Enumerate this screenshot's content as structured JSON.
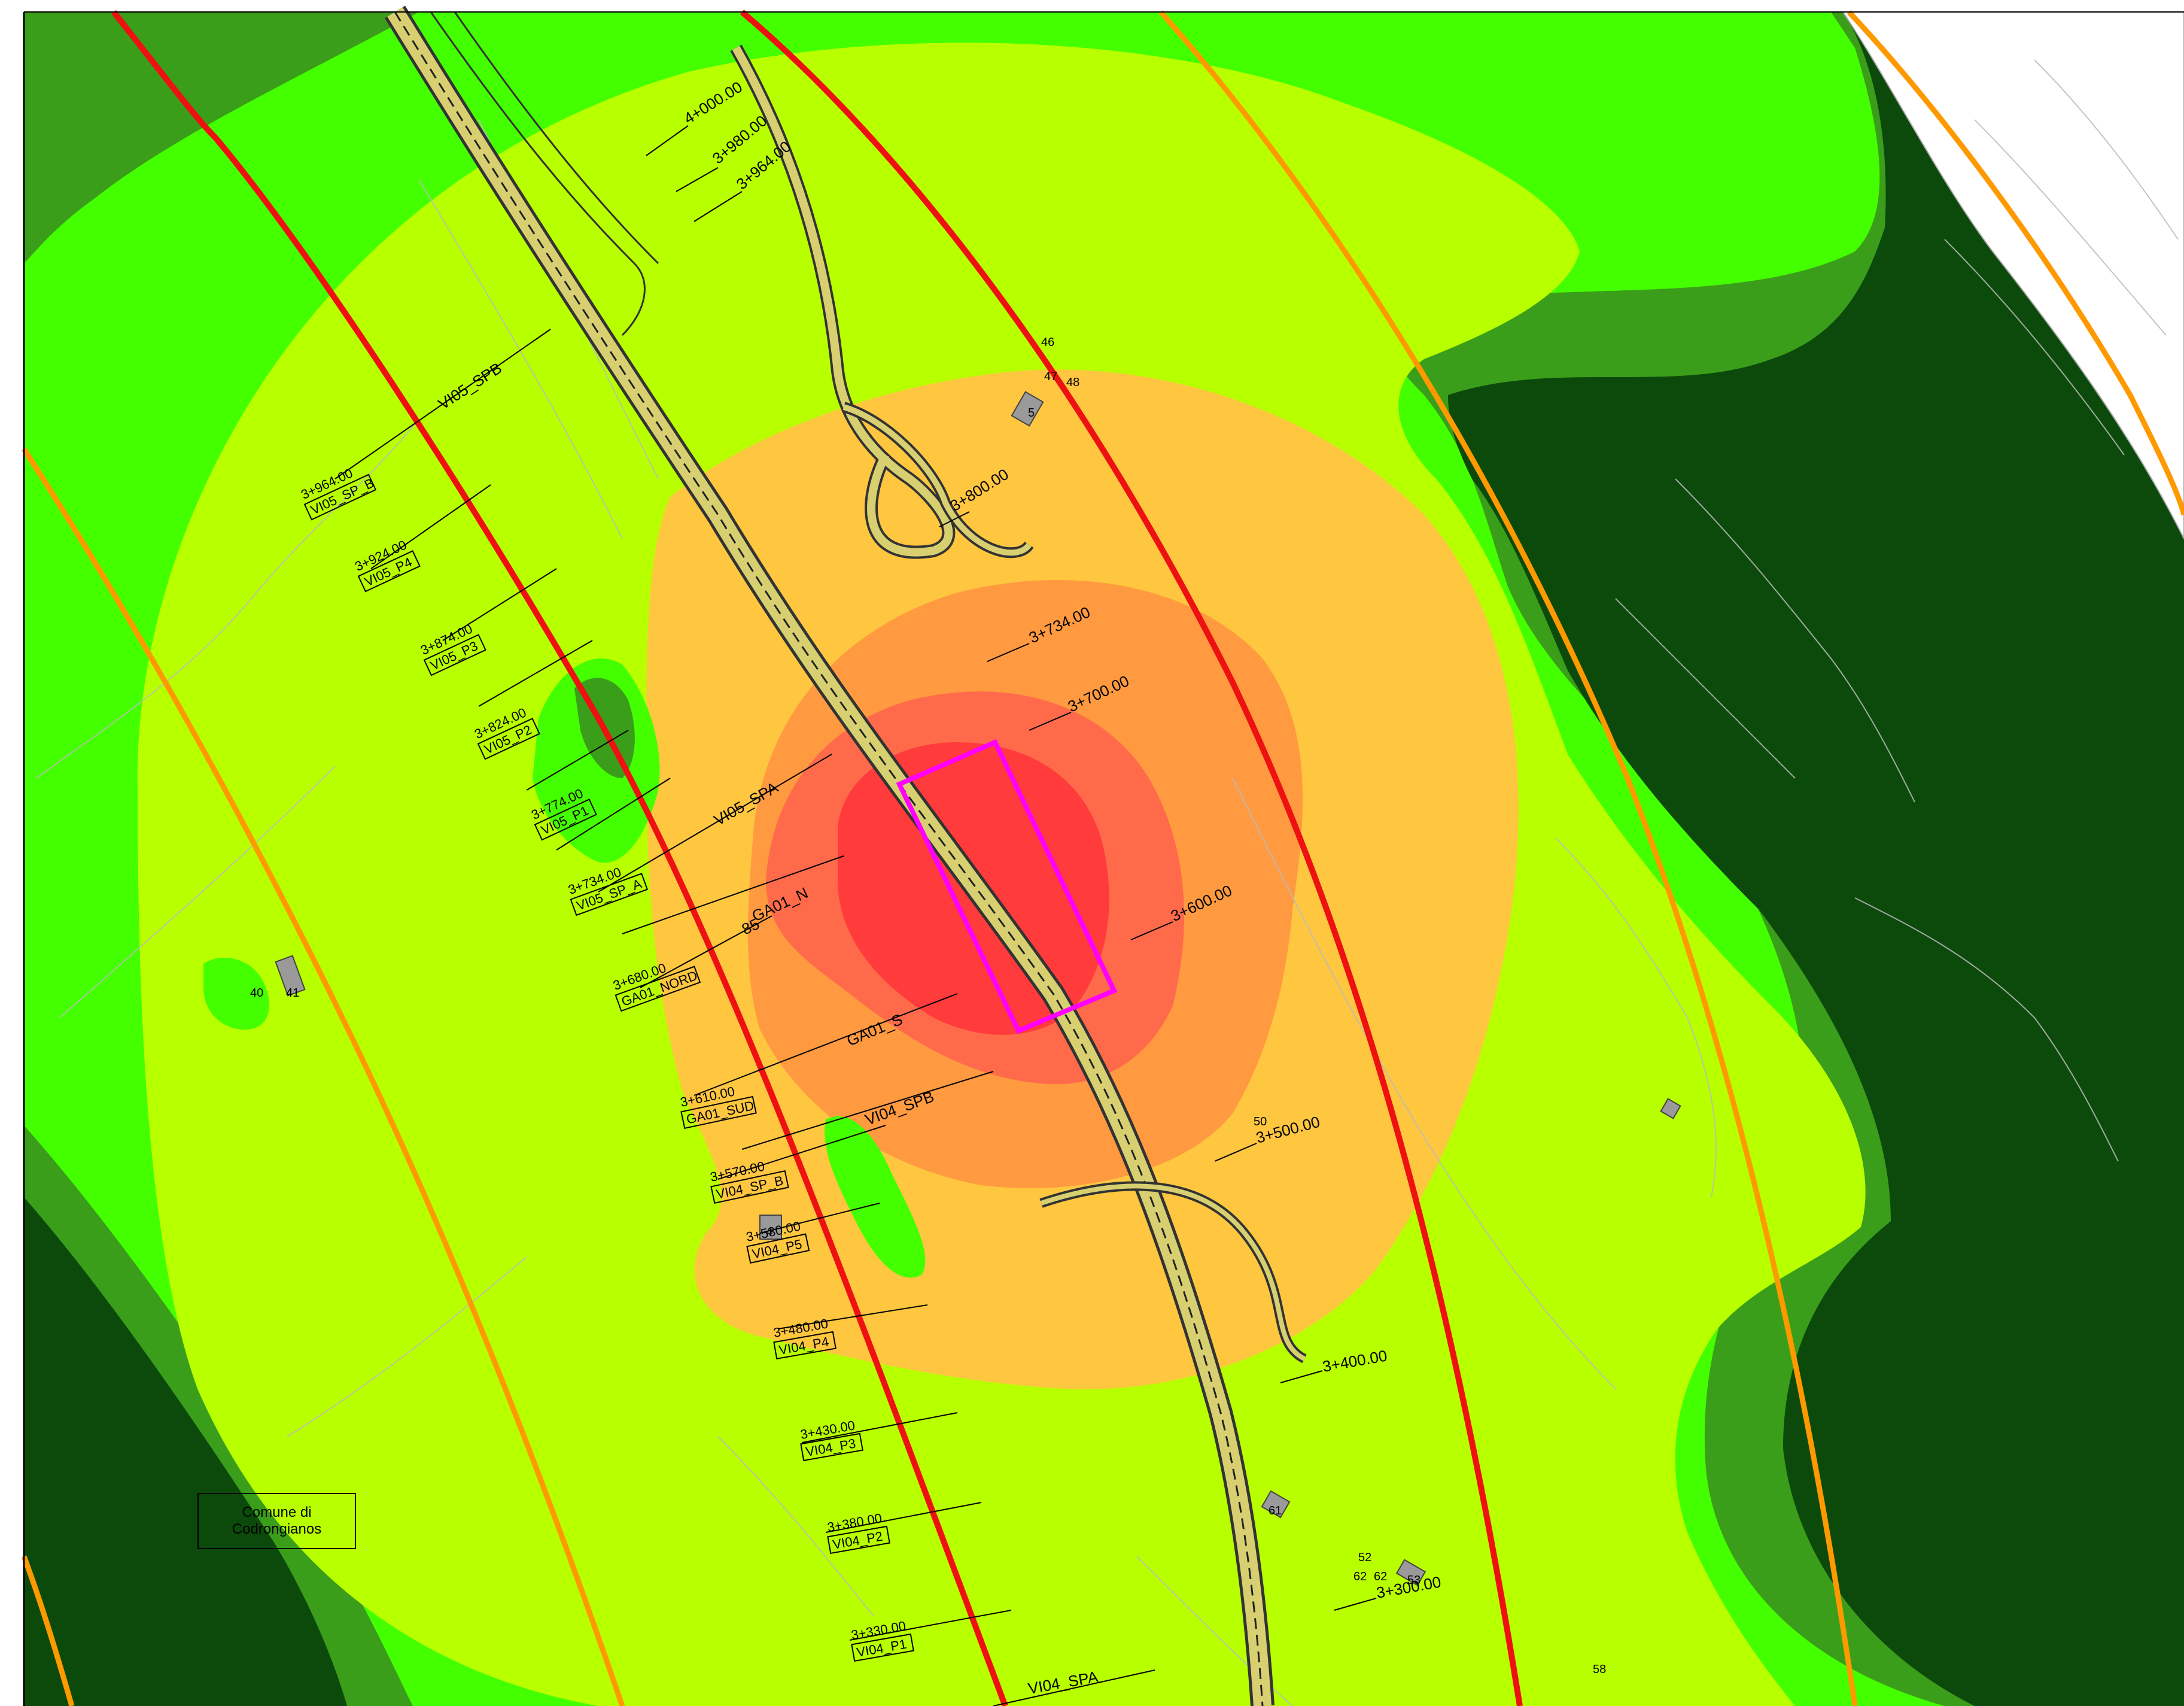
{
  "map": {
    "comune_label": {
      "line1": "Comune di",
      "line2": "Codrongianos"
    },
    "chainages_right": [
      "4+000.00",
      "3+980.00",
      "3+964.00",
      "3+800.00",
      "3+734.00",
      "3+700.00",
      "3+600.00",
      "3+500.00",
      "3+400.00",
      "3+300.00"
    ],
    "structure_labels": [
      "VI05_SPB",
      "VI05_SPA",
      "GA01_N",
      "GA01_S",
      "VI04_SPB",
      "VI04_SPA"
    ],
    "partial_label": "85",
    "pier_labels": [
      {
        "chainage": "3+964.00",
        "tag": "VI05_SP_B"
      },
      {
        "chainage": "3+924.00",
        "tag": "VI05_P4"
      },
      {
        "chainage": "3+874.00",
        "tag": "VI05_P3"
      },
      {
        "chainage": "3+824.00",
        "tag": "VI05_P2"
      },
      {
        "chainage": "3+774.00",
        "tag": "VI05_P1"
      },
      {
        "chainage": "3+734.00",
        "tag": "VI05_SP_A"
      },
      {
        "chainage": "3+680.00",
        "tag": "GA01_NORD"
      },
      {
        "chainage": "3+610.00",
        "tag": "GA01_SUD"
      },
      {
        "chainage": "3+570.00",
        "tag": "VI04_SP_B"
      },
      {
        "chainage": "3+530.00",
        "tag": "VI04_P5"
      },
      {
        "chainage": "3+480.00",
        "tag": "VI04_P4"
      },
      {
        "chainage": "3+430.00",
        "tag": "VI04_P3"
      },
      {
        "chainage": "3+380.00",
        "tag": "VI04_P2"
      },
      {
        "chainage": "3+330.00",
        "tag": "VI04_P1"
      }
    ],
    "building_numbers": [
      "46",
      "47",
      "48",
      "5",
      "40",
      "41",
      "50",
      "4",
      "61",
      "52",
      "62",
      "62",
      "53",
      "58"
    ],
    "zone_colors": {
      "outer_dark": "#0c4a0c",
      "medium_green": "#3a9e1a",
      "bright_green": "#44ff00",
      "lime": "#b8ff00",
      "orange_yellow": "#ffc640",
      "orange": "#ff9a40",
      "red": "#ff3b3b",
      "magenta": "#ff00ff",
      "red_line": "#ee1111",
      "orange_line": "#ff9900"
    }
  }
}
